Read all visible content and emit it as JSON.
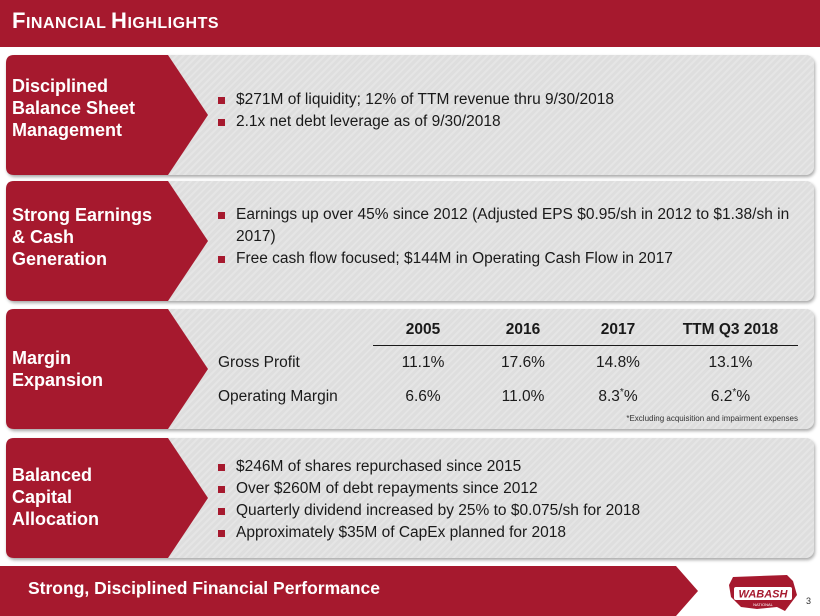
{
  "header": {
    "title_first": "F",
    "title_rest1": "INANCIAL ",
    "title_h": "H",
    "title_rest2": "IGHLIGHTS"
  },
  "rows": [
    {
      "label": [
        "Disciplined",
        "Balance Sheet",
        "Management"
      ],
      "bullets": [
        "$271M of liquidity; 12% of TTM revenue thru 9/30/2018",
        "2.1x net debt leverage as of 9/30/2018"
      ]
    },
    {
      "label": [
        "Strong Earnings",
        "& Cash",
        "Generation"
      ],
      "bullets": [
        "Earnings up over 45% since 2012 (Adjusted EPS $0.95/sh in 2012 to $1.38/sh in 2017)",
        "Free cash flow focused; $144M in Operating Cash Flow in 2017"
      ]
    },
    {
      "label": [
        "Margin",
        "Expansion"
      ],
      "table": {
        "columns": [
          "2005",
          "2016",
          "2017",
          "TTM Q3 2018"
        ],
        "rows": [
          {
            "label": "Gross Profit",
            "values": [
              "11.1%",
              "17.6%",
              "14.8%",
              "13.1%"
            ]
          },
          {
            "label": "Operating Margin",
            "values": [
              "6.6%",
              "11.0%",
              "8.3",
              "6.2"
            ]
          }
        ],
        "star": "*",
        "pct": "%",
        "footnote": "*Excluding acquisition and impairment expenses"
      }
    },
    {
      "label": [
        "Balanced",
        "Capital",
        "Allocation"
      ],
      "bullets": [
        "$246M of shares repurchased since 2015",
        "Over $260M of debt repayments since 2012",
        "Quarterly dividend increased by 25% to $0.075/sh for 2018",
        "Approximately $35M of CapEx planned for 2018"
      ]
    }
  ],
  "footer": {
    "text": "Strong, Disciplined Financial Performance",
    "page": "3"
  },
  "logo": {
    "text": "WABASH",
    "subtext": "NATIONAL"
  },
  "colors": {
    "brand_red": "#a6192e",
    "panel_gray": "#dedede"
  }
}
